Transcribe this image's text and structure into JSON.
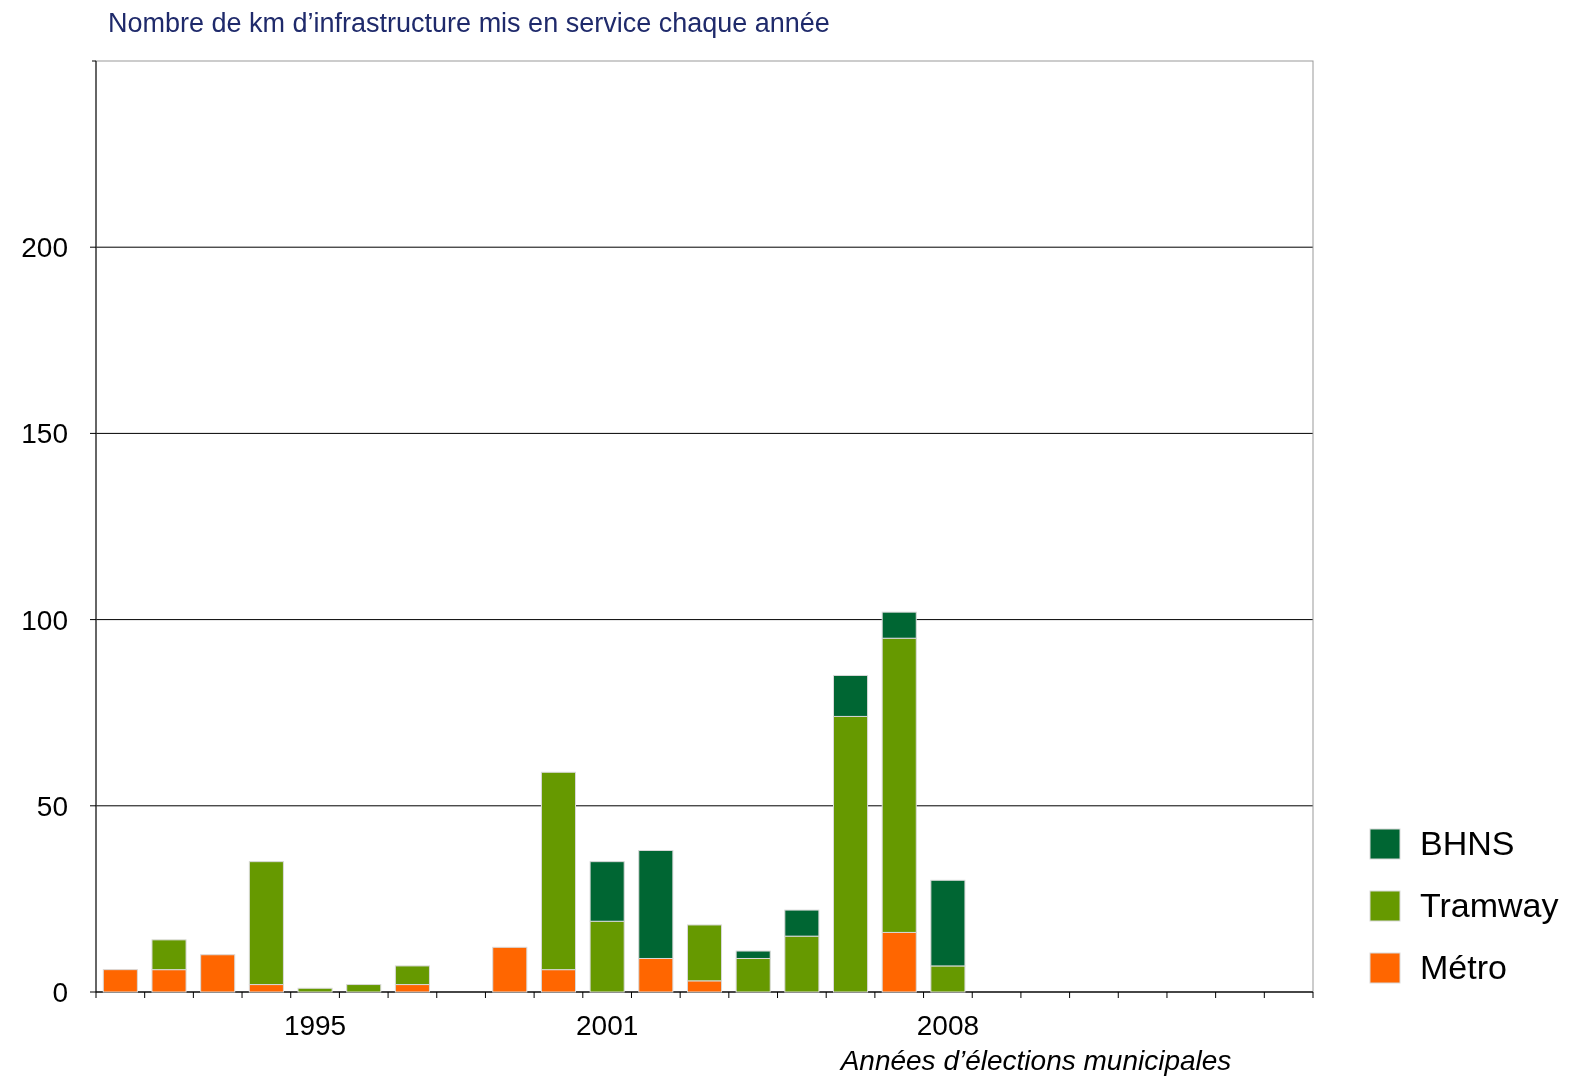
{
  "chart_data": {
    "type": "bar",
    "title": "Nombre de km d’infrastructure mis en service chaque année",
    "categories": [
      null,
      null,
      null,
      null,
      "1995",
      null,
      null,
      null,
      null,
      null,
      "2001",
      null,
      null,
      null,
      null,
      null,
      null,
      "2008",
      null,
      null,
      null,
      null,
      null,
      null,
      null
    ],
    "stacked": true,
    "series": [
      {
        "name": "Métro",
        "color": "#ff6600",
        "values": [
          6,
          6,
          10,
          2,
          0,
          0,
          2,
          0,
          12,
          6,
          0,
          9,
          3,
          0,
          0,
          0,
          16,
          0,
          0,
          0,
          0,
          0,
          0,
          0,
          0
        ]
      },
      {
        "name": "Tramway",
        "color": "#669900",
        "values": [
          0,
          8,
          0,
          33,
          1,
          2,
          5,
          0,
          0,
          53,
          19,
          0,
          15,
          9,
          15,
          74,
          79,
          7,
          0,
          0,
          0,
          0,
          0,
          0,
          0
        ]
      },
      {
        "name": "BHNS",
        "color": "#006633",
        "values": [
          0,
          0,
          0,
          0,
          0,
          0,
          0,
          0,
          0,
          0,
          16,
          29,
          0,
          2,
          7,
          11,
          7,
          23,
          0,
          0,
          0,
          0,
          0,
          0,
          0
        ]
      }
    ],
    "ylim": [
      0,
      250
    ],
    "yticks": [
      0,
      50,
      100,
      150,
      200
    ],
    "grid": "y",
    "legend": "right",
    "annotations": [
      "Années d’élections municipales"
    ]
  }
}
